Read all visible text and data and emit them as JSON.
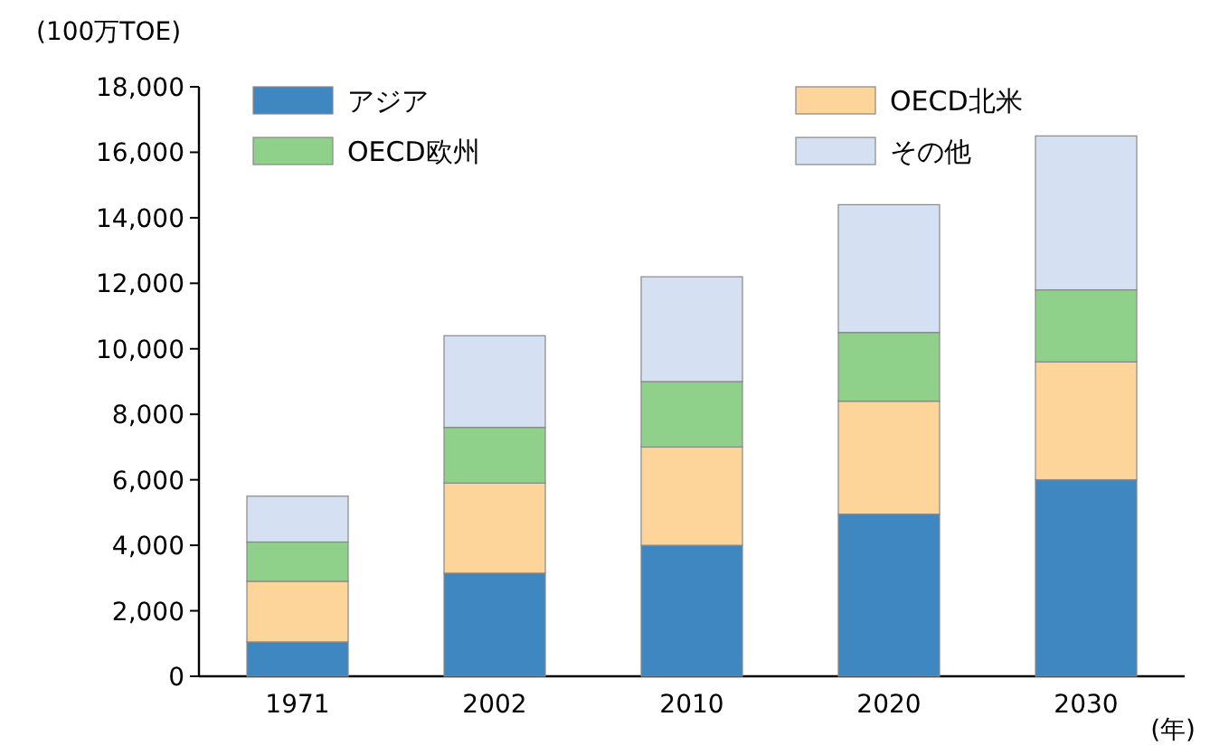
{
  "chart_data": {
    "type": "bar",
    "stacked": true,
    "ylabel": "(100万TOE)",
    "xlabel": "(年)",
    "categories": [
      "1971",
      "2002",
      "2010",
      "2020",
      "2030"
    ],
    "series": [
      {
        "name": "アジア",
        "color": "#3f87c0",
        "values": [
          1050,
          3150,
          4000,
          4950,
          6000
        ]
      },
      {
        "name": "OECD北米",
        "color": "#fdd59a",
        "values": [
          1850,
          2750,
          3000,
          3450,
          3600
        ]
      },
      {
        "name": "OECD欧州",
        "color": "#8fd18a",
        "values": [
          1200,
          1700,
          2000,
          2100,
          2200
        ]
      },
      {
        "name": "その他",
        "color": "#d5e0f3",
        "values": [
          1400,
          2800,
          3200,
          3900,
          4700
        ]
      }
    ],
    "ylim": [
      0,
      18000
    ],
    "yticks": [
      0,
      {
        "value": 2000,
        "label": "2,000"
      },
      {
        "value": 4000,
        "label": "4,000"
      },
      {
        "value": 6000,
        "label": "6,000"
      },
      {
        "value": 8000,
        "label": "8,000"
      },
      {
        "value": 10000,
        "label": "10,000"
      },
      {
        "value": 12000,
        "label": "12,000"
      },
      {
        "value": 14000,
        "label": "14,000"
      },
      {
        "value": 16000,
        "label": "16,000"
      },
      {
        "value": 18000,
        "label": "18,000"
      }
    ],
    "legend": "top",
    "grid": false
  }
}
